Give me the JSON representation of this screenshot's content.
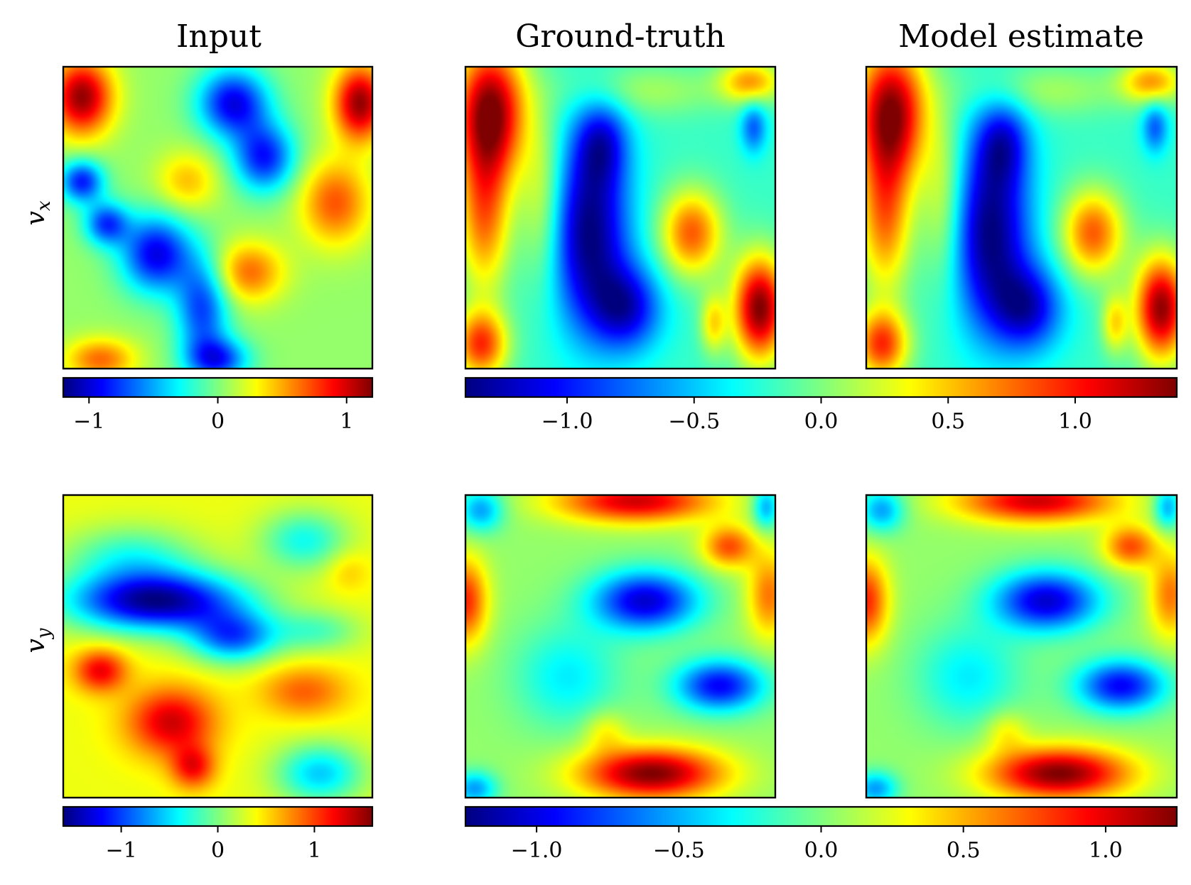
{
  "figure": {
    "column_titles": [
      "Input",
      "Ground-truth",
      "Model estimate"
    ],
    "row_labels": [
      "v",
      "v"
    ],
    "row_label_subscripts": [
      "x",
      "y"
    ]
  },
  "colormap": {
    "name": "jet",
    "stops": [
      "#00007f",
      "#0000ff",
      "#007fff",
      "#00ffff",
      "#7fff7f",
      "#ffff00",
      "#ff7f00",
      "#ff0000",
      "#7f0000"
    ]
  },
  "chart_data": [
    {
      "type": "heatmap",
      "title": "Input",
      "ylabel": "v_x",
      "colorbar": {
        "vmin": -1.2,
        "vmax": 1.2,
        "ticks": [
          -1,
          0,
          1
        ],
        "tick_labels": [
          "−1",
          "0",
          "1"
        ]
      },
      "field": {
        "base": 0.05,
        "blobs": [
          {
            "x": 0.06,
            "y": 0.1,
            "sx": 0.07,
            "sy": 0.09,
            "a": 1.1
          },
          {
            "x": 0.96,
            "y": 0.12,
            "sx": 0.06,
            "sy": 0.09,
            "a": 1.1
          },
          {
            "x": 0.55,
            "y": 0.12,
            "sx": 0.08,
            "sy": 0.08,
            "a": -1.0
          },
          {
            "x": 0.65,
            "y": 0.3,
            "sx": 0.07,
            "sy": 0.08,
            "a": -0.9
          },
          {
            "x": 0.06,
            "y": 0.38,
            "sx": 0.05,
            "sy": 0.05,
            "a": -0.9
          },
          {
            "x": 0.14,
            "y": 0.52,
            "sx": 0.05,
            "sy": 0.05,
            "a": -0.8
          },
          {
            "x": 0.3,
            "y": 0.62,
            "sx": 0.08,
            "sy": 0.09,
            "a": -1.0
          },
          {
            "x": 0.45,
            "y": 0.8,
            "sx": 0.06,
            "sy": 0.12,
            "a": -0.8
          },
          {
            "x": 0.5,
            "y": 0.97,
            "sx": 0.07,
            "sy": 0.05,
            "a": -0.8
          },
          {
            "x": 0.88,
            "y": 0.45,
            "sx": 0.08,
            "sy": 0.1,
            "a": 0.65
          },
          {
            "x": 0.6,
            "y": 0.68,
            "sx": 0.08,
            "sy": 0.07,
            "a": 0.6
          },
          {
            "x": 0.4,
            "y": 0.38,
            "sx": 0.07,
            "sy": 0.07,
            "a": 0.4
          },
          {
            "x": 0.12,
            "y": 0.97,
            "sx": 0.08,
            "sy": 0.05,
            "a": 0.6
          }
        ]
      }
    },
    {
      "type": "heatmap",
      "title": "Ground-truth",
      "colorbar": {
        "vmin": -1.4,
        "vmax": 1.4,
        "ticks": [
          -1.0,
          -0.5,
          0.0,
          0.5,
          1.0
        ],
        "tick_labels": [
          "−1.0",
          "−0.5",
          "0.0",
          "0.5",
          "1.0"
        ]
      },
      "field": {
        "base": -0.2,
        "blobs": [
          {
            "x": 0.08,
            "y": 0.15,
            "sx": 0.08,
            "sy": 0.16,
            "a": 1.6
          },
          {
            "x": 0.06,
            "y": 0.5,
            "sx": 0.06,
            "sy": 0.18,
            "a": 0.9
          },
          {
            "x": 0.05,
            "y": 0.92,
            "sx": 0.06,
            "sy": 0.08,
            "a": 1.1
          },
          {
            "x": 0.95,
            "y": 0.8,
            "sx": 0.06,
            "sy": 0.12,
            "a": 1.6
          },
          {
            "x": 0.73,
            "y": 0.55,
            "sx": 0.07,
            "sy": 0.1,
            "a": 1.0
          },
          {
            "x": 0.92,
            "y": 0.05,
            "sx": 0.07,
            "sy": 0.05,
            "a": 0.8
          },
          {
            "x": 0.58,
            "y": 0.08,
            "sx": 0.18,
            "sy": 0.06,
            "a": 0.3
          },
          {
            "x": 0.25,
            "y": 0.45,
            "sx": 0.05,
            "sy": 0.2,
            "a": 0.5
          },
          {
            "x": 0.4,
            "y": 0.55,
            "sx": 0.09,
            "sy": 0.22,
            "a": -1.2
          },
          {
            "x": 0.52,
            "y": 0.8,
            "sx": 0.08,
            "sy": 0.1,
            "a": -0.9
          },
          {
            "x": 0.44,
            "y": 0.25,
            "sx": 0.06,
            "sy": 0.1,
            "a": -0.7
          },
          {
            "x": 0.93,
            "y": 0.2,
            "sx": 0.03,
            "sy": 0.06,
            "a": -0.6
          },
          {
            "x": 0.8,
            "y": 0.85,
            "sx": 0.03,
            "sy": 0.07,
            "a": 0.6
          }
        ]
      }
    },
    {
      "type": "heatmap",
      "title": "Model estimate",
      "colorbar": "shared with Ground-truth (row 1)",
      "field": {
        "base": -0.2,
        "blobs": [
          {
            "x": 0.08,
            "y": 0.15,
            "sx": 0.08,
            "sy": 0.16,
            "a": 1.55
          },
          {
            "x": 0.06,
            "y": 0.5,
            "sx": 0.06,
            "sy": 0.18,
            "a": 0.9
          },
          {
            "x": 0.05,
            "y": 0.92,
            "sx": 0.06,
            "sy": 0.08,
            "a": 1.1
          },
          {
            "x": 0.95,
            "y": 0.8,
            "sx": 0.06,
            "sy": 0.12,
            "a": 1.55
          },
          {
            "x": 0.73,
            "y": 0.55,
            "sx": 0.07,
            "sy": 0.1,
            "a": 1.0
          },
          {
            "x": 0.92,
            "y": 0.05,
            "sx": 0.07,
            "sy": 0.05,
            "a": 0.8
          },
          {
            "x": 0.58,
            "y": 0.08,
            "sx": 0.18,
            "sy": 0.06,
            "a": 0.3
          },
          {
            "x": 0.25,
            "y": 0.45,
            "sx": 0.05,
            "sy": 0.2,
            "a": 0.5
          },
          {
            "x": 0.4,
            "y": 0.55,
            "sx": 0.09,
            "sy": 0.22,
            "a": -1.2
          },
          {
            "x": 0.52,
            "y": 0.8,
            "sx": 0.08,
            "sy": 0.1,
            "a": -0.9
          },
          {
            "x": 0.44,
            "y": 0.25,
            "sx": 0.06,
            "sy": 0.1,
            "a": -0.7
          },
          {
            "x": 0.93,
            "y": 0.2,
            "sx": 0.03,
            "sy": 0.06,
            "a": -0.6
          },
          {
            "x": 0.8,
            "y": 0.85,
            "sx": 0.03,
            "sy": 0.07,
            "a": 0.6
          }
        ]
      }
    },
    {
      "type": "heatmap",
      "title": "Input",
      "ylabel": "v_y",
      "colorbar": {
        "vmin": -1.6,
        "vmax": 1.6,
        "ticks": [
          -1,
          0,
          1
        ],
        "tick_labels": [
          "−1",
          "0",
          "1"
        ]
      },
      "field": {
        "base": 0.35,
        "blobs": [
          {
            "x": 0.3,
            "y": 0.35,
            "sx": 0.2,
            "sy": 0.07,
            "a": -1.9
          },
          {
            "x": 0.55,
            "y": 0.47,
            "sx": 0.1,
            "sy": 0.06,
            "a": -1.2
          },
          {
            "x": 0.22,
            "y": 0.2,
            "sx": 0.15,
            "sy": 0.07,
            "a": -0.6
          },
          {
            "x": 0.78,
            "y": 0.15,
            "sx": 0.1,
            "sy": 0.07,
            "a": -0.7
          },
          {
            "x": 0.82,
            "y": 0.45,
            "sx": 0.1,
            "sy": 0.05,
            "a": -0.5
          },
          {
            "x": 0.83,
            "y": 0.92,
            "sx": 0.1,
            "sy": 0.07,
            "a": -0.9
          },
          {
            "x": 0.12,
            "y": 0.58,
            "sx": 0.06,
            "sy": 0.05,
            "a": 0.9
          },
          {
            "x": 0.35,
            "y": 0.75,
            "sx": 0.1,
            "sy": 0.08,
            "a": 1.0
          },
          {
            "x": 0.42,
            "y": 0.9,
            "sx": 0.05,
            "sy": 0.05,
            "a": 0.8
          },
          {
            "x": 0.78,
            "y": 0.65,
            "sx": 0.1,
            "sy": 0.06,
            "a": 0.55
          },
          {
            "x": 0.92,
            "y": 0.25,
            "sx": 0.05,
            "sy": 0.05,
            "a": 0.25
          }
        ]
      }
    },
    {
      "type": "heatmap",
      "title": "Ground-truth",
      "colorbar": {
        "vmin": -1.25,
        "vmax": 1.25,
        "ticks": [
          -1.0,
          -0.5,
          0.0,
          0.5,
          1.0
        ],
        "tick_labels": [
          "−1.0",
          "−0.5",
          "0.0",
          "0.5",
          "1.0"
        ]
      },
      "field": {
        "base": 0.05,
        "blobs": [
          {
            "x": 0.55,
            "y": 0.02,
            "sx": 0.18,
            "sy": 0.05,
            "a": 1.0
          },
          {
            "x": 0.0,
            "y": 0.35,
            "sx": 0.05,
            "sy": 0.1,
            "a": 0.8
          },
          {
            "x": 0.98,
            "y": 0.33,
            "sx": 0.05,
            "sy": 0.1,
            "a": 0.6
          },
          {
            "x": 0.85,
            "y": 0.17,
            "sx": 0.06,
            "sy": 0.05,
            "a": 0.7
          },
          {
            "x": 0.6,
            "y": 0.92,
            "sx": 0.16,
            "sy": 0.06,
            "a": 1.2
          },
          {
            "x": 0.58,
            "y": 0.35,
            "sx": 0.12,
            "sy": 0.07,
            "a": -1.1
          },
          {
            "x": 0.82,
            "y": 0.63,
            "sx": 0.1,
            "sy": 0.06,
            "a": -1.0
          },
          {
            "x": 0.33,
            "y": 0.6,
            "sx": 0.12,
            "sy": 0.12,
            "a": -0.4
          },
          {
            "x": 0.05,
            "y": 0.05,
            "sx": 0.05,
            "sy": 0.05,
            "a": -0.6
          },
          {
            "x": 0.97,
            "y": 0.04,
            "sx": 0.03,
            "sy": 0.05,
            "a": -0.6
          },
          {
            "x": 0.03,
            "y": 0.97,
            "sx": 0.05,
            "sy": 0.04,
            "a": -0.6
          },
          {
            "x": 0.45,
            "y": 0.78,
            "sx": 0.05,
            "sy": 0.05,
            "a": 0.3
          }
        ]
      }
    },
    {
      "type": "heatmap",
      "title": "Model estimate",
      "colorbar": "shared with Ground-truth (row 2)",
      "field": {
        "base": 0.05,
        "blobs": [
          {
            "x": 0.55,
            "y": 0.02,
            "sx": 0.18,
            "sy": 0.05,
            "a": 1.0
          },
          {
            "x": 0.0,
            "y": 0.35,
            "sx": 0.05,
            "sy": 0.1,
            "a": 0.8
          },
          {
            "x": 0.98,
            "y": 0.33,
            "sx": 0.05,
            "sy": 0.1,
            "a": 0.6
          },
          {
            "x": 0.85,
            "y": 0.17,
            "sx": 0.06,
            "sy": 0.05,
            "a": 0.7
          },
          {
            "x": 0.62,
            "y": 0.92,
            "sx": 0.16,
            "sy": 0.06,
            "a": 1.2
          },
          {
            "x": 0.58,
            "y": 0.35,
            "sx": 0.12,
            "sy": 0.07,
            "a": -1.1
          },
          {
            "x": 0.82,
            "y": 0.63,
            "sx": 0.1,
            "sy": 0.06,
            "a": -1.0
          },
          {
            "x": 0.33,
            "y": 0.6,
            "sx": 0.12,
            "sy": 0.12,
            "a": -0.4
          },
          {
            "x": 0.05,
            "y": 0.05,
            "sx": 0.05,
            "sy": 0.05,
            "a": -0.6
          },
          {
            "x": 0.97,
            "y": 0.04,
            "sx": 0.03,
            "sy": 0.05,
            "a": -0.6
          },
          {
            "x": 0.03,
            "y": 0.97,
            "sx": 0.05,
            "sy": 0.04,
            "a": -0.6
          },
          {
            "x": 0.45,
            "y": 0.78,
            "sx": 0.05,
            "sy": 0.05,
            "a": 0.3
          }
        ]
      }
    }
  ]
}
